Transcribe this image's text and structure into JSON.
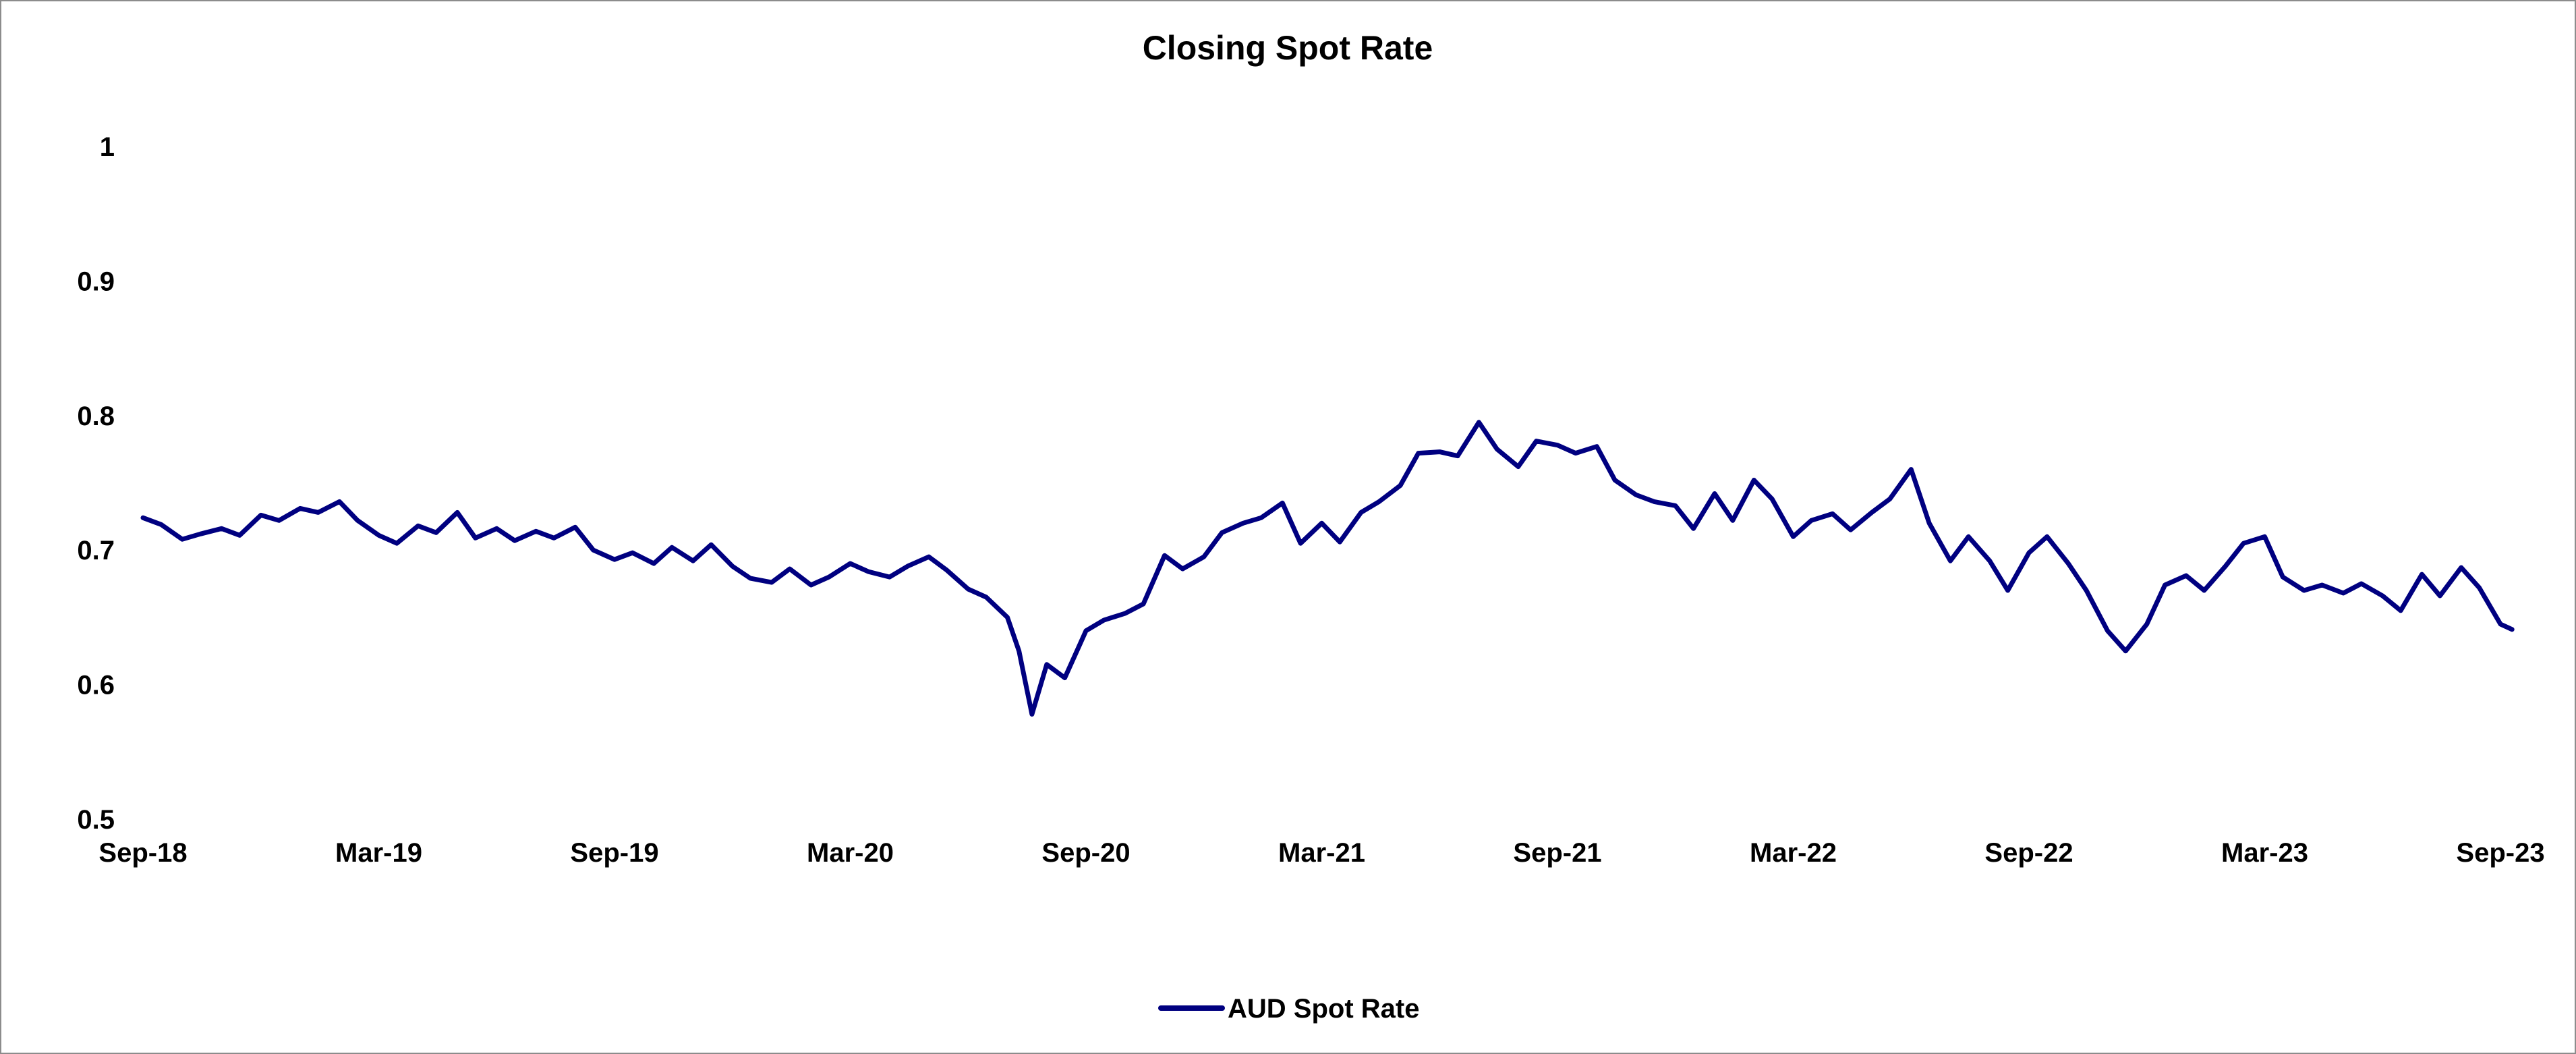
{
  "chart_data": {
    "type": "line",
    "title": "Closing Spot Rate",
    "xlabel": "",
    "ylabel": "",
    "x_tick_labels": [
      "Sep-18",
      "Mar-19",
      "Sep-19",
      "Mar-20",
      "Sep-20",
      "Mar-21",
      "Sep-21",
      "Mar-22",
      "Sep-22",
      "Mar-23",
      "Sep-23"
    ],
    "y_ticks": [
      0.5,
      0.6,
      0.7,
      0.8,
      0.9,
      1
    ],
    "y_tick_labels": [
      "0.5",
      "0.6",
      "0.7",
      "0.8",
      "0.9",
      "1"
    ],
    "xlim": [
      "2018-09",
      "2023-09"
    ],
    "ylim": [
      0.5,
      1
    ],
    "grid": false,
    "legend_position": "bottom-center",
    "series": [
      {
        "name": "AUD Spot Rate",
        "color": "#000080",
        "points": [
          [
            "2018-09-01",
            0.724
          ],
          [
            "2018-09-15",
            0.719
          ],
          [
            "2018-10-01",
            0.708
          ],
          [
            "2018-10-15",
            0.712
          ],
          [
            "2018-11-01",
            0.716
          ],
          [
            "2018-11-15",
            0.711
          ],
          [
            "2018-12-01",
            0.726
          ],
          [
            "2018-12-15",
            0.722
          ],
          [
            "2019-01-01",
            0.731
          ],
          [
            "2019-01-15",
            0.728
          ],
          [
            "2019-02-01",
            0.736
          ],
          [
            "2019-02-15",
            0.722
          ],
          [
            "2019-03-01",
            0.711
          ],
          [
            "2019-03-15",
            0.705
          ],
          [
            "2019-04-01",
            0.718
          ],
          [
            "2019-04-15",
            0.713
          ],
          [
            "2019-05-01",
            0.728
          ],
          [
            "2019-05-15",
            0.709
          ],
          [
            "2019-06-01",
            0.716
          ],
          [
            "2019-06-15",
            0.707
          ],
          [
            "2019-07-01",
            0.714
          ],
          [
            "2019-07-15",
            0.709
          ],
          [
            "2019-08-01",
            0.717
          ],
          [
            "2019-08-15",
            0.7
          ],
          [
            "2019-09-01",
            0.693
          ],
          [
            "2019-09-15",
            0.698
          ],
          [
            "2019-10-01",
            0.69
          ],
          [
            "2019-10-15",
            0.702
          ],
          [
            "2019-11-01",
            0.692
          ],
          [
            "2019-11-15",
            0.704
          ],
          [
            "2019-12-01",
            0.688
          ],
          [
            "2019-12-15",
            0.679
          ],
          [
            "2020-01-01",
            0.676
          ],
          [
            "2020-01-15",
            0.686
          ],
          [
            "2020-02-01",
            0.674
          ],
          [
            "2020-02-15",
            0.68
          ],
          [
            "2020-03-01",
            0.69
          ],
          [
            "2020-03-15",
            0.684
          ],
          [
            "2020-04-01",
            0.68
          ],
          [
            "2020-04-15",
            0.688
          ],
          [
            "2020-05-01",
            0.695
          ],
          [
            "2020-05-15",
            0.685
          ],
          [
            "2020-06-01",
            0.671
          ],
          [
            "2020-06-15",
            0.665
          ],
          [
            "2020-07-01",
            0.65
          ],
          [
            "2020-07-10",
            0.625
          ],
          [
            "2020-07-20",
            0.578
          ],
          [
            "2020-08-01",
            0.615
          ],
          [
            "2020-08-15",
            0.605
          ],
          [
            "2020-09-01",
            0.64
          ],
          [
            "2020-09-15",
            0.648
          ],
          [
            "2020-10-01",
            0.653
          ],
          [
            "2020-10-15",
            0.66
          ],
          [
            "2020-11-01",
            0.696
          ],
          [
            "2020-11-15",
            0.686
          ],
          [
            "2020-12-01",
            0.695
          ],
          [
            "2020-12-15",
            0.713
          ],
          [
            "2021-01-01",
            0.72
          ],
          [
            "2021-01-15",
            0.724
          ],
          [
            "2021-02-01",
            0.735
          ],
          [
            "2021-02-15",
            0.705
          ],
          [
            "2021-03-01",
            0.72
          ],
          [
            "2021-03-15",
            0.706
          ],
          [
            "2021-04-01",
            0.728
          ],
          [
            "2021-04-15",
            0.736
          ],
          [
            "2021-05-01",
            0.748
          ],
          [
            "2021-05-15",
            0.772
          ],
          [
            "2021-06-01",
            0.773
          ],
          [
            "2021-06-15",
            0.77
          ],
          [
            "2021-07-01",
            0.795
          ],
          [
            "2021-07-15",
            0.775
          ],
          [
            "2021-08-01",
            0.762
          ],
          [
            "2021-08-15",
            0.781
          ],
          [
            "2021-09-01",
            0.778
          ],
          [
            "2021-09-15",
            0.772
          ],
          [
            "2021-10-01",
            0.777
          ],
          [
            "2021-10-15",
            0.752
          ],
          [
            "2021-11-01",
            0.741
          ],
          [
            "2021-11-15",
            0.736
          ],
          [
            "2021-12-01",
            0.733
          ],
          [
            "2021-12-15",
            0.716
          ],
          [
            "2022-01-01",
            0.742
          ],
          [
            "2022-01-15",
            0.722
          ],
          [
            "2022-02-01",
            0.752
          ],
          [
            "2022-02-15",
            0.738
          ],
          [
            "2022-03-01",
            0.71
          ],
          [
            "2022-03-15",
            0.722
          ],
          [
            "2022-04-01",
            0.727
          ],
          [
            "2022-04-15",
            0.715
          ],
          [
            "2022-05-01",
            0.728
          ],
          [
            "2022-05-15",
            0.738
          ],
          [
            "2022-06-01",
            0.76
          ],
          [
            "2022-06-15",
            0.72
          ],
          [
            "2022-07-01",
            0.692
          ],
          [
            "2022-07-15",
            0.71
          ],
          [
            "2022-08-01",
            0.692
          ],
          [
            "2022-08-15",
            0.67
          ],
          [
            "2022-09-01",
            0.698
          ],
          [
            "2022-09-15",
            0.71
          ],
          [
            "2022-10-01",
            0.69
          ],
          [
            "2022-10-15",
            0.67
          ],
          [
            "2022-11-01",
            0.64
          ],
          [
            "2022-11-15",
            0.625
          ],
          [
            "2022-12-01",
            0.645
          ],
          [
            "2022-12-15",
            0.674
          ],
          [
            "2023-01-01",
            0.681
          ],
          [
            "2023-01-15",
            0.67
          ],
          [
            "2023-02-01",
            0.688
          ],
          [
            "2023-02-15",
            0.705
          ],
          [
            "2023-03-01",
            0.71
          ],
          [
            "2023-03-15",
            0.68
          ],
          [
            "2023-04-01",
            0.67
          ],
          [
            "2023-04-15",
            0.674
          ],
          [
            "2023-05-01",
            0.668
          ],
          [
            "2023-05-15",
            0.675
          ],
          [
            "2023-06-01",
            0.666
          ],
          [
            "2023-06-15",
            0.655
          ],
          [
            "2023-07-01",
            0.682
          ],
          [
            "2023-07-15",
            0.666
          ],
          [
            "2023-08-01",
            0.687
          ],
          [
            "2023-08-15",
            0.672
          ],
          [
            "2023-09-01",
            0.645
          ],
          [
            "2023-09-10",
            0.641
          ]
        ]
      }
    ]
  }
}
